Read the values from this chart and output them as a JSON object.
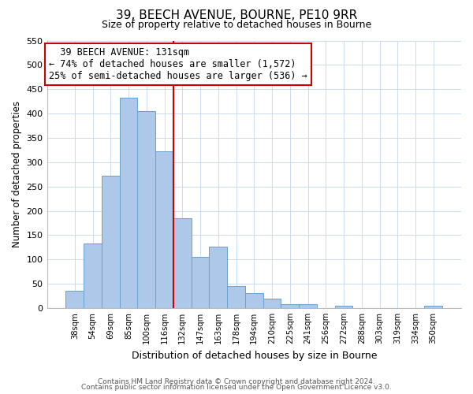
{
  "title": "39, BEECH AVENUE, BOURNE, PE10 9RR",
  "subtitle": "Size of property relative to detached houses in Bourne",
  "xlabel": "Distribution of detached houses by size in Bourne",
  "ylabel": "Number of detached properties",
  "bar_labels": [
    "38sqm",
    "54sqm",
    "69sqm",
    "85sqm",
    "100sqm",
    "116sqm",
    "132sqm",
    "147sqm",
    "163sqm",
    "178sqm",
    "194sqm",
    "210sqm",
    "225sqm",
    "241sqm",
    "256sqm",
    "272sqm",
    "288sqm",
    "303sqm",
    "319sqm",
    "334sqm",
    "350sqm"
  ],
  "bar_values": [
    35,
    133,
    272,
    433,
    405,
    322,
    184,
    105,
    127,
    46,
    30,
    20,
    8,
    8,
    0,
    5,
    0,
    0,
    0,
    0,
    5
  ],
  "bar_color": "#adc8e8",
  "bar_edge_color": "#6aa0cc",
  "property_line_index": 6,
  "property_line_color": "#cc0000",
  "annotation_title": "39 BEECH AVENUE: 131sqm",
  "annotation_line1": "← 74% of detached houses are smaller (1,572)",
  "annotation_line2": "25% of semi-detached houses are larger (536) →",
  "annotation_box_color": "#ffffff",
  "annotation_box_edge": "#cc0000",
  "ylim_max": 550,
  "yticks": [
    0,
    50,
    100,
    150,
    200,
    250,
    300,
    350,
    400,
    450,
    500,
    550
  ],
  "footer1": "Contains HM Land Registry data © Crown copyright and database right 2024.",
  "footer2": "Contains public sector information licensed under the Open Government Licence v3.0.",
  "background_color": "#ffffff",
  "grid_color": "#ccdcee"
}
